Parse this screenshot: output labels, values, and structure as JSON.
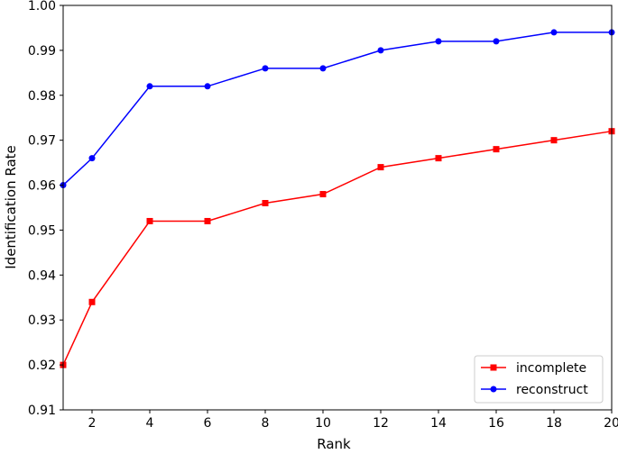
{
  "chart_data": {
    "type": "line",
    "title": "",
    "xlabel": "Rank",
    "ylabel": "Identification Rate",
    "xlim": [
      1,
      20
    ],
    "ylim": [
      0.91,
      1.0
    ],
    "xticks": [
      2,
      4,
      6,
      8,
      10,
      12,
      14,
      16,
      18,
      20
    ],
    "yticks": [
      0.91,
      0.92,
      0.93,
      0.94,
      0.95,
      0.96,
      0.97,
      0.98,
      0.99,
      1.0
    ],
    "xtick_labels": [
      "2",
      "4",
      "6",
      "8",
      "10",
      "12",
      "14",
      "16",
      "18",
      "20"
    ],
    "ytick_labels": [
      "0.91",
      "0.92",
      "0.93",
      "0.94",
      "0.95",
      "0.96",
      "0.97",
      "0.98",
      "0.99",
      "1.00"
    ],
    "x": [
      1,
      2,
      4,
      6,
      8,
      10,
      12,
      14,
      16,
      18,
      20
    ],
    "grid": false,
    "legend_position": "lower-right",
    "series": [
      {
        "name": "incomplete",
        "color": "#ff0000",
        "marker": "square",
        "values": [
          0.92,
          0.934,
          0.952,
          0.952,
          0.956,
          0.958,
          0.964,
          0.966,
          0.968,
          0.97,
          0.972
        ]
      },
      {
        "name": "reconstruct",
        "color": "#0000ff",
        "marker": "circle",
        "values": [
          0.96,
          0.966,
          0.982,
          0.982,
          0.986,
          0.986,
          0.99,
          0.992,
          0.992,
          0.994,
          0.994
        ]
      }
    ]
  }
}
